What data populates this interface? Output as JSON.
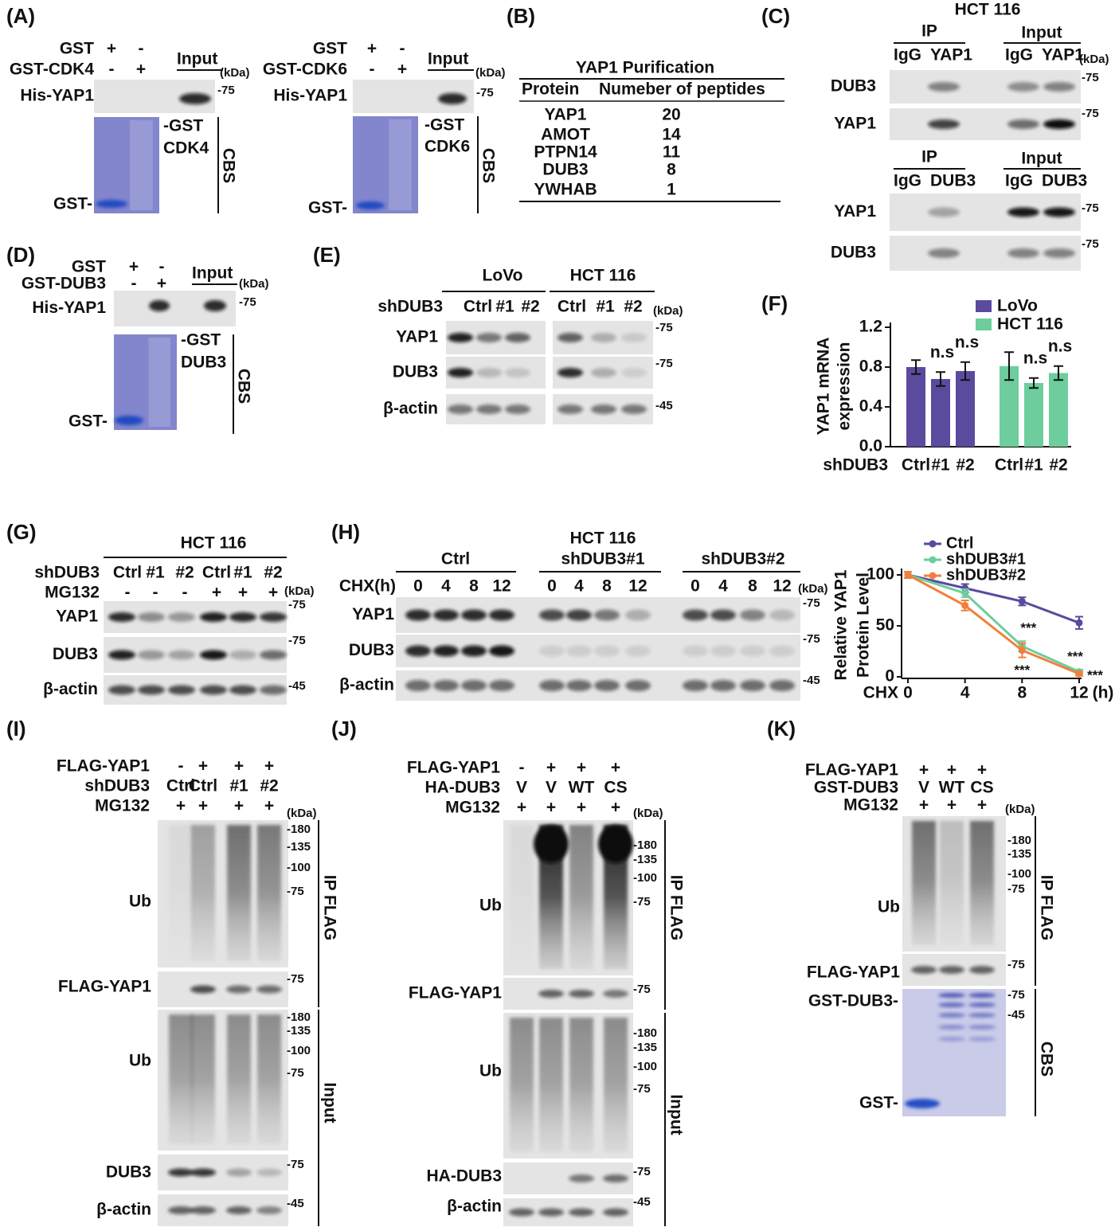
{
  "panels": {
    "A": {
      "label": "(A)",
      "cdk4": {
        "rows": [
          [
            "GST",
            "+",
            "-"
          ],
          [
            "GST-CDK4",
            "-",
            "+"
          ]
        ],
        "input": "Input",
        "kda": "(kDa)",
        "marker": "-75",
        "blot": "His-YAP1",
        "band": [
          "-GST",
          "CDK4"
        ],
        "stain": "CBS",
        "gst": "GST-"
      },
      "cdk6": {
        "rows": [
          [
            "GST",
            "+",
            "-"
          ],
          [
            "GST-CDK6",
            "-",
            "+"
          ]
        ],
        "input": "Input",
        "kda": "(kDa)",
        "marker": "-75",
        "blot": "His-YAP1",
        "band": [
          "-GST",
          "CDK6"
        ],
        "stain": "CBS",
        "gst": "GST-"
      }
    },
    "B": {
      "label": "(B)",
      "title": "YAP1 Purification",
      "header": [
        "Protein",
        "Numeber of peptides"
      ],
      "rows": [
        [
          "YAP1",
          20
        ],
        [
          "AMOT",
          14
        ],
        [
          "PTPN14",
          11
        ],
        [
          "DUB3",
          8
        ],
        [
          "YWHAB",
          1
        ]
      ]
    },
    "C": {
      "label": "(C)",
      "cell": "HCT 116",
      "top": {
        "ip": "IP",
        "input": "Input",
        "lanes": [
          "IgG",
          "YAP1",
          "IgG",
          "YAP1"
        ],
        "kda": "(kDa)",
        "blots": [
          {
            "name": "DUB3",
            "marker": "-75"
          },
          {
            "name": "YAP1",
            "marker": "-75"
          }
        ]
      },
      "bottom": {
        "ip": "IP",
        "input": "Input",
        "lanes": [
          "IgG",
          "DUB3",
          "IgG",
          "DUB3"
        ],
        "blots": [
          {
            "name": "YAP1",
            "marker": "-75"
          },
          {
            "name": "DUB3",
            "marker": "-75"
          }
        ]
      }
    },
    "D": {
      "label": "(D)",
      "pull": {
        "rows": [
          [
            "GST",
            "+",
            "-"
          ],
          [
            "GST-DUB3",
            "-",
            "+"
          ]
        ],
        "input": "Input",
        "kda": "(kDa)",
        "marker": "-75",
        "blot": "His-YAP1",
        "band": [
          "-GST",
          "DUB3"
        ],
        "stain": "CBS",
        "gst": "GST-"
      }
    },
    "E": {
      "label": "(E)",
      "groups": [
        "LoVo",
        "HCT 116"
      ],
      "row_label": "shDUB3",
      "lanes": [
        "Ctrl",
        "#1",
        "#2",
        "Ctrl",
        "#1",
        "#2"
      ],
      "kda": "(kDa)",
      "blots": [
        {
          "name": "YAP1",
          "marker": "-75"
        },
        {
          "name": "DUB3",
          "marker": "-75"
        },
        {
          "name": "β-actin",
          "marker": "-45"
        }
      ]
    },
    "G": {
      "label": "(G)",
      "cell": "HCT 116",
      "rows": [
        [
          "shDUB3",
          "Ctrl",
          "#1",
          "#2",
          "Ctrl",
          "#1",
          "#2"
        ],
        [
          "MG132",
          "-",
          "-",
          "-",
          "+",
          "+",
          "+"
        ]
      ],
      "kda": "(kDa)",
      "blots": [
        {
          "name": "YAP1",
          "marker": "-75"
        },
        {
          "name": "DUB3",
          "marker": "-75"
        },
        {
          "name": "β-actin",
          "marker": "-45"
        }
      ]
    },
    "H": {
      "label": "(H)",
      "groups": [
        [
          "Ctrl"
        ],
        [
          "HCT 116",
          "shDUB3#1"
        ],
        [
          "shDUB3#2"
        ]
      ],
      "row_label": "CHX(h)",
      "times": [
        0,
        4,
        8,
        12
      ],
      "kda": "(kDa)",
      "blots": [
        {
          "name": "YAP1",
          "marker": "-75"
        },
        {
          "name": "DUB3",
          "marker": "-75"
        },
        {
          "name": "β-actin",
          "marker": "-45"
        }
      ]
    },
    "I": {
      "label": "(I)",
      "rows": [
        [
          "FLAG-YAP1",
          "-",
          "+",
          "+",
          "+"
        ],
        [
          "shDUB3",
          "Ctrl",
          "Ctrl",
          "#1",
          "#2"
        ],
        [
          "MG132",
          "+",
          "+",
          "+",
          "+"
        ]
      ],
      "kda": "(kDa)",
      "ip": {
        "tag": "IP FLAG",
        "blots": [
          {
            "name": "Ub",
            "markers": [
              "-180",
              "-135",
              "-100",
              "-75"
            ]
          },
          {
            "name": "FLAG-YAP1",
            "markers": [
              "-75"
            ]
          }
        ]
      },
      "input": {
        "tag": "Input",
        "blots": [
          {
            "name": "Ub",
            "markers": [
              "-180",
              "-135",
              "-100",
              "-75"
            ]
          },
          {
            "name": "DUB3",
            "markers": [
              "-75"
            ]
          },
          {
            "name": "β-actin",
            "markers": [
              "-45"
            ]
          }
        ]
      }
    },
    "J": {
      "label": "(J)",
      "rows": [
        [
          "FLAG-YAP1",
          "-",
          "+",
          "+",
          "+"
        ],
        [
          "HA-DUB3",
          "V",
          "V",
          "WT",
          "CS"
        ],
        [
          "MG132",
          "+",
          "+",
          "+",
          "+"
        ]
      ],
      "kda": "(kDa)",
      "ip": {
        "tag": "IP FLAG",
        "blots": [
          {
            "name": "Ub",
            "markers": [
              "-180",
              "-135",
              "-100",
              "-75"
            ]
          },
          {
            "name": "FLAG-YAP1",
            "markers": [
              "-75"
            ]
          }
        ]
      },
      "input": {
        "tag": "Input",
        "blots": [
          {
            "name": "Ub",
            "markers": [
              "-180",
              "-135",
              "-100",
              "-75"
            ]
          },
          {
            "name": "HA-DUB3",
            "markers": [
              "-75"
            ]
          },
          {
            "name": "β-actin",
            "markers": [
              "-45"
            ]
          }
        ]
      }
    },
    "K": {
      "label": "(K)",
      "rows": [
        [
          "FLAG-YAP1",
          "+",
          "+",
          "+"
        ],
        [
          "GST-DUB3",
          "V",
          "WT",
          "CS"
        ],
        [
          "MG132",
          "+",
          "+",
          "+"
        ]
      ],
      "kda": "(kDa)",
      "ip": {
        "tag": "IP FLAG",
        "blots": [
          {
            "name": "Ub",
            "markers": [
              "-180",
              "-135",
              "-100",
              "-75"
            ]
          },
          {
            "name": "FLAG-YAP1",
            "markers": [
              "-75"
            ]
          }
        ]
      },
      "cbs": {
        "tag": "CBS",
        "labels": [
          "GST-DUB3-",
          "GST-"
        ],
        "markers": [
          "-75",
          "-45"
        ]
      }
    }
  },
  "chart_data": [
    {
      "type": "bar",
      "label": "(F)",
      "ylabel": [
        "YAP1 mRNA",
        "expression"
      ],
      "xlabel": "shDUB3",
      "categories": [
        "Ctrl",
        "#1",
        "#2"
      ],
      "series": [
        {
          "name": "LoVo",
          "color": "#5b4a9e",
          "values": [
            0.8,
            0.68,
            0.76
          ],
          "errors": [
            0.07,
            0.07,
            0.09
          ]
        },
        {
          "name": "HCT 116",
          "color": "#6dcd9c",
          "values": [
            0.81,
            0.64,
            0.74
          ],
          "errors": [
            0.14,
            0.05,
            0.07
          ]
        }
      ],
      "annotations": [
        "n.s",
        "n.s",
        "n.s",
        "n.s"
      ],
      "ylim": [
        0,
        1.2
      ],
      "yticks": [
        {
          "value": 0,
          "label": "0.0"
        },
        0.4,
        0.8,
        1.2
      ],
      "legend": "top-right"
    },
    {
      "type": "line",
      "ylabel": [
        "Relative YAP1",
        "Protein Level"
      ],
      "xlabel": "CHX",
      "xunit": "(h)",
      "x": [
        0,
        4,
        8,
        12
      ],
      "xlim": [
        0,
        12
      ],
      "xticks": [
        0,
        4,
        8,
        12
      ],
      "ylim": [
        0,
        100
      ],
      "yticks": [
        0,
        50,
        100
      ],
      "series": [
        {
          "name": "Ctrl",
          "color": "#5b4a9e",
          "values": [
            100,
            87,
            74,
            53
          ],
          "errors": [
            3,
            4,
            4,
            6
          ]
        },
        {
          "name": "shDUB3#1",
          "color": "#6dcd9c",
          "values": [
            100,
            82,
            30,
            5
          ],
          "errors": [
            3,
            4,
            5,
            2
          ]
        },
        {
          "name": "shDUB3#2",
          "color": "#f0803c",
          "values": [
            100,
            70,
            26,
            3
          ],
          "errors": [
            3,
            5,
            7,
            2
          ]
        }
      ],
      "annotations": [
        "***",
        "***",
        "***",
        "***"
      ],
      "legend": "top-right"
    }
  ]
}
